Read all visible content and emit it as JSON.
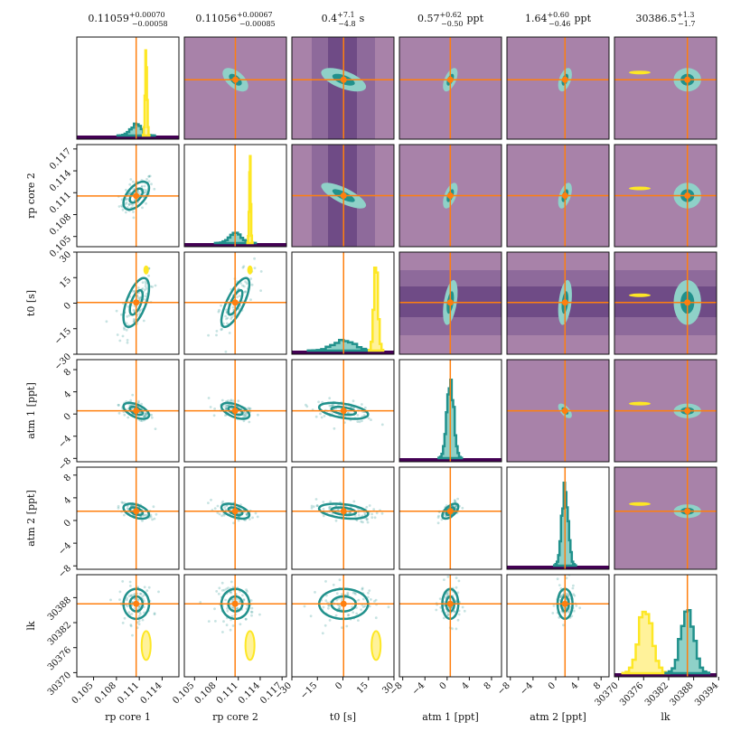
{
  "chart_data": {
    "type": "corner",
    "parameters": [
      {
        "name": "rp core 1",
        "tick_labels": [
          "0.105",
          "0.108",
          "0.111",
          "0.114"
        ],
        "tick_values": [
          0.105,
          0.108,
          0.111,
          0.114
        ],
        "range": [
          0.1028,
          0.1162
        ],
        "truth": 0.11059,
        "title": {
          "main": "0.11059",
          "sup": "+0.00070",
          "sub": "−0.00058",
          "unit": ""
        }
      },
      {
        "name": "rp core 2",
        "tick_labels": [
          "0.105",
          "0.108",
          "0.111",
          "0.114",
          "0.117"
        ],
        "tick_values": [
          0.105,
          0.108,
          0.111,
          0.114,
          0.117
        ],
        "range": [
          0.1036,
          0.1176
        ],
        "truth": 0.11056,
        "title": {
          "main": "0.11056",
          "sup": "+0.00067",
          "sub": "−0.00085",
          "unit": ""
        }
      },
      {
        "name": "t0 [s]",
        "tick_labels": [
          "−30",
          "−15",
          "0",
          "15",
          "30"
        ],
        "tick_values": [
          -30,
          -15,
          0,
          15,
          30
        ],
        "range": [
          -30,
          30
        ],
        "truth": 0.4,
        "title": {
          "main": "0.4",
          "sup": "+7.1",
          "sub": "−4.8",
          "unit": "s"
        }
      },
      {
        "name": "atm 1 [ppt]",
        "tick_labels": [
          "−8",
          "−4",
          "0",
          "4",
          "8"
        ],
        "tick_values": [
          -8,
          -4,
          0,
          4,
          8
        ],
        "range": [
          -8.6,
          9.8
        ],
        "truth": 0.57,
        "title": {
          "main": "0.57",
          "sup": "+0.62",
          "sub": "−0.50",
          "unit": "ppt"
        }
      },
      {
        "name": "atm 2 [ppt]",
        "tick_labels": [
          "−8",
          "−4",
          "0",
          "4",
          "8"
        ],
        "tick_values": [
          -8,
          -4,
          0,
          4,
          8
        ],
        "range": [
          -8.6,
          9.4
        ],
        "truth": 1.64,
        "title": {
          "main": "1.64",
          "sup": "+0.60",
          "sub": "−0.46",
          "unit": "ppt"
        }
      },
      {
        "name": "lk",
        "tick_labels": [
          "30370",
          "30376",
          "30382",
          "30388",
          "30394"
        ],
        "tick_values": [
          30370,
          30376,
          30382,
          30388,
          30394
        ],
        "range": [
          30369,
          30393.5
        ],
        "truth": 30386.5,
        "title": {
          "main": "30386.5",
          "sup": "+1.3",
          "sub": "−1.7",
          "unit": ""
        }
      }
    ],
    "posterior_peaks": [
      0.1106,
      0.1106,
      0.4,
      0.57,
      1.64,
      30386.5
    ],
    "posterior_widths": [
      0.0007,
      0.0008,
      6,
      0.6,
      0.55,
      1.5
    ],
    "prior_peaks": [
      0.1119,
      0.1126,
      19.5,
      0.3,
      1.5,
      30376.5
    ],
    "prior_widths": [
      0.00012,
      0.0001,
      1.2,
      0.6,
      0.5,
      1.6
    ],
    "correlations": {
      "1-0": 0.55,
      "2-0": 0.6,
      "2-1": 0.75,
      "3-0": -0.55,
      "3-1": -0.55,
      "3-2": -0.45,
      "4-0": -0.45,
      "4-1": -0.5,
      "4-2": -0.35,
      "4-3": 0.6,
      "5-0": 0,
      "5-1": 0,
      "5-2": 0,
      "5-3": 0,
      "5-4": 0
    },
    "colors": {
      "posterior": "#21918c",
      "posterior_light": "#8fd1c8",
      "prior": "#fde725",
      "prior_light": "#fff29a",
      "truth": "#ff7f0e",
      "background": "#a882a9",
      "band_dark": "#6f4b86",
      "band_mid": "#8e6a9b",
      "baseline": "#440154"
    }
  }
}
